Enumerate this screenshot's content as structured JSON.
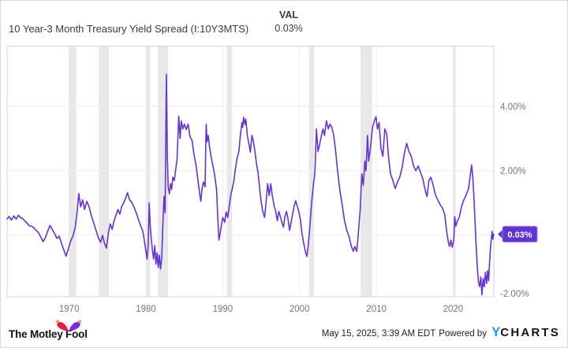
{
  "header": {
    "title": "10 Year-3 Month Treasury Yield Spread (I:10Y3MTS)",
    "val_label": "VAL",
    "val_value": "0.03%"
  },
  "badge": {
    "label": "0.03%"
  },
  "footer": {
    "brand": "The Motley Fool",
    "timestamp": "May 15, 2025, 3:39 AM EDT",
    "powered_by": "Powered by",
    "ycharts_y": "Y",
    "ycharts_rest": "CHARTS"
  },
  "colors": {
    "line": "#6234d6",
    "badge_fill": "#6234d6",
    "badge_stroke": "#9d7bea",
    "badge_text": "#ffffff",
    "recession_band": "#e8e8e8",
    "gridline": "#ececec",
    "plot_border": "#d4d4d4",
    "tick_text": "#757575",
    "fool_red": "#e61a4b",
    "fool_purple": "#7a2ad8",
    "fool_orange": "#f7a31b"
  },
  "chart_data": {
    "type": "line",
    "title": "10 Year-3 Month Treasury Yield Spread (I:10Y3MTS)",
    "series_name": "10 Year-3 Month Treasury Yield Spread",
    "current_value_pct": 0.03,
    "x_unit": "year",
    "x_range": [
      1961.92,
      2025.3
    ],
    "y_unit": "percent",
    "ylim": [
      -1.91,
      5.87
    ],
    "grid": true,
    "x_ticks": [
      1970,
      1980,
      1990,
      2000,
      2010,
      2020
    ],
    "y_ticks": [
      {
        "value": 4,
        "label": "4.00%"
      },
      {
        "value": 2,
        "label": "2.00%"
      },
      {
        "value": -2,
        "label": "-2.00%"
      }
    ],
    "y_gridlines": [
      4,
      2,
      0
    ],
    "recession_bands": [
      [
        1969.92,
        1970.92
      ],
      [
        1973.87,
        1975.17
      ],
      [
        1980.04,
        1980.54
      ],
      [
        1981.54,
        1982.88
      ],
      [
        1990.54,
        1991.21
      ],
      [
        2001.21,
        2001.88
      ],
      [
        2007.95,
        2009.45
      ],
      [
        2020.05,
        2020.33
      ]
    ],
    "points": [
      [
        1961.92,
        0.5
      ],
      [
        1962.2,
        0.58
      ],
      [
        1962.5,
        0.47
      ],
      [
        1962.8,
        0.6
      ],
      [
        1963.1,
        0.5
      ],
      [
        1963.4,
        0.62
      ],
      [
        1963.7,
        0.54
      ],
      [
        1964.0,
        0.5
      ],
      [
        1964.4,
        0.4
      ],
      [
        1964.8,
        0.3
      ],
      [
        1965.2,
        0.27
      ],
      [
        1965.6,
        0.18
      ],
      [
        1966.0,
        0.08
      ],
      [
        1966.3,
        -0.05
      ],
      [
        1966.6,
        -0.2
      ],
      [
        1966.9,
        -0.08
      ],
      [
        1967.2,
        0.12
      ],
      [
        1967.5,
        0.3
      ],
      [
        1967.8,
        0.18
      ],
      [
        1968.1,
        0.05
      ],
      [
        1968.4,
        -0.1
      ],
      [
        1968.7,
        -0.03
      ],
      [
        1969.0,
        -0.25
      ],
      [
        1969.3,
        -0.45
      ],
      [
        1969.6,
        -0.65
      ],
      [
        1969.9,
        -0.42
      ],
      [
        1970.2,
        -0.18
      ],
      [
        1970.5,
        -0.02
      ],
      [
        1970.8,
        0.25
      ],
      [
        1971.05,
        0.75
      ],
      [
        1971.25,
        1.3
      ],
      [
        1971.5,
        0.88
      ],
      [
        1971.75,
        1.1
      ],
      [
        1972.0,
        0.8
      ],
      [
        1972.3,
        1.05
      ],
      [
        1972.6,
        0.88
      ],
      [
        1972.9,
        0.6
      ],
      [
        1973.2,
        0.38
      ],
      [
        1973.5,
        0.15
      ],
      [
        1973.8,
        -0.08
      ],
      [
        1974.1,
        -0.22
      ],
      [
        1974.35,
        0.0
      ],
      [
        1974.6,
        -0.25
      ],
      [
        1974.85,
        -0.4
      ],
      [
        1975.1,
        0.05
      ],
      [
        1975.35,
        0.35
      ],
      [
        1975.6,
        0.18
      ],
      [
        1975.85,
        0.45
      ],
      [
        1976.1,
        0.62
      ],
      [
        1976.35,
        0.8
      ],
      [
        1976.6,
        0.65
      ],
      [
        1976.85,
        0.9
      ],
      [
        1977.1,
        1.0
      ],
      [
        1977.35,
        1.15
      ],
      [
        1977.6,
        1.32
      ],
      [
        1977.85,
        1.1
      ],
      [
        1978.1,
        1.04
      ],
      [
        1978.4,
        0.9
      ],
      [
        1978.7,
        0.72
      ],
      [
        1979.0,
        0.5
      ],
      [
        1979.3,
        0.3
      ],
      [
        1979.6,
        0.12
      ],
      [
        1979.85,
        -0.25
      ],
      [
        1980.0,
        -0.5
      ],
      [
        1980.15,
        -0.74
      ],
      [
        1980.3,
        -0.28
      ],
      [
        1980.42,
        1.0
      ],
      [
        1980.55,
        0.3
      ],
      [
        1980.7,
        -0.12
      ],
      [
        1980.85,
        -0.48
      ],
      [
        1981.0,
        -0.74
      ],
      [
        1981.15,
        -0.32
      ],
      [
        1981.3,
        -0.9
      ],
      [
        1981.45,
        -0.55
      ],
      [
        1981.6,
        -1.0
      ],
      [
        1981.75,
        -0.62
      ],
      [
        1981.9,
        -1.05
      ],
      [
        1982.05,
        -0.7
      ],
      [
        1982.2,
        0.3
      ],
      [
        1982.35,
        1.2
      ],
      [
        1982.5,
        0.7
      ],
      [
        1982.66,
        5.0
      ],
      [
        1982.78,
        2.5
      ],
      [
        1982.9,
        1.5
      ],
      [
        1983.05,
        1.28
      ],
      [
        1983.2,
        1.6
      ],
      [
        1983.35,
        1.42
      ],
      [
        1983.5,
        1.8
      ],
      [
        1983.7,
        1.7
      ],
      [
        1983.9,
        2.1
      ],
      [
        1984.05,
        2.35
      ],
      [
        1984.27,
        3.7
      ],
      [
        1984.45,
        3.0
      ],
      [
        1984.6,
        3.55
      ],
      [
        1984.8,
        3.3
      ],
      [
        1985.0,
        3.45
      ],
      [
        1985.25,
        3.28
      ],
      [
        1985.5,
        3.45
      ],
      [
        1985.75,
        3.05
      ],
      [
        1986.0,
        2.95
      ],
      [
        1986.25,
        2.5
      ],
      [
        1986.5,
        2.2
      ],
      [
        1986.75,
        1.75
      ],
      [
        1987.0,
        1.28
      ],
      [
        1987.15,
        1.05
      ],
      [
        1987.3,
        1.45
      ],
      [
        1987.5,
        1.65
      ],
      [
        1987.7,
        1.5
      ],
      [
        1987.78,
        2.6
      ],
      [
        1987.85,
        3.45
      ],
      [
        1987.95,
        2.9
      ],
      [
        1988.1,
        3.1
      ],
      [
        1988.3,
        2.7
      ],
      [
        1988.6,
        2.3
      ],
      [
        1988.9,
        1.95
      ],
      [
        1989.2,
        1.4
      ],
      [
        1989.35,
        0.6
      ],
      [
        1989.5,
        -0.15
      ],
      [
        1989.7,
        0.1
      ],
      [
        1989.85,
        0.35
      ],
      [
        1990.0,
        0.55
      ],
      [
        1990.25,
        0.4
      ],
      [
        1990.45,
        0.72
      ],
      [
        1990.65,
        0.55
      ],
      [
        1990.85,
        0.9
      ],
      [
        1991.05,
        1.25
      ],
      [
        1991.25,
        1.45
      ],
      [
        1991.45,
        1.7
      ],
      [
        1991.65,
        2.05
      ],
      [
        1991.85,
        2.38
      ],
      [
        1992.1,
        2.6
      ],
      [
        1992.3,
        3.1
      ],
      [
        1992.5,
        3.5
      ],
      [
        1992.6,
        3.35
      ],
      [
        1992.72,
        3.66
      ],
      [
        1992.9,
        3.44
      ],
      [
        1993.0,
        3.6
      ],
      [
        1993.2,
        3.1
      ],
      [
        1993.4,
        2.85
      ],
      [
        1993.6,
        2.58
      ],
      [
        1993.8,
        3.1
      ],
      [
        1994.0,
        2.9
      ],
      [
        1994.2,
        2.6
      ],
      [
        1994.4,
        2.2
      ],
      [
        1994.6,
        1.95
      ],
      [
        1994.8,
        1.45
      ],
      [
        1995.0,
        1.05
      ],
      [
        1995.2,
        0.74
      ],
      [
        1995.45,
        0.55
      ],
      [
        1995.65,
        1.05
      ],
      [
        1995.85,
        1.6
      ],
      [
        1996.05,
        1.23
      ],
      [
        1996.25,
        1.6
      ],
      [
        1996.45,
        1.23
      ],
      [
        1996.7,
        0.9
      ],
      [
        1996.9,
        0.74
      ],
      [
        1997.1,
        0.45
      ],
      [
        1997.3,
        0.74
      ],
      [
        1997.5,
        0.58
      ],
      [
        1997.7,
        0.4
      ],
      [
        1997.9,
        0.25
      ],
      [
        1998.1,
        0.58
      ],
      [
        1998.3,
        0.74
      ],
      [
        1998.5,
        0.5
      ],
      [
        1998.7,
        0.15
      ],
      [
        1998.9,
        0.4
      ],
      [
        1999.1,
        0.65
      ],
      [
        1999.3,
        0.9
      ],
      [
        1999.5,
        1.07
      ],
      [
        1999.7,
        0.9
      ],
      [
        1999.9,
        0.74
      ],
      [
        2000.1,
        0.5
      ],
      [
        2000.3,
        0.1
      ],
      [
        2000.5,
        -0.2
      ],
      [
        2000.75,
        -0.5
      ],
      [
        2000.95,
        -0.66
      ],
      [
        2001.1,
        -0.4
      ],
      [
        2001.3,
        0.15
      ],
      [
        2001.55,
        0.95
      ],
      [
        2001.8,
        1.55
      ],
      [
        2002.0,
        1.95
      ],
      [
        2002.2,
        3.3
      ],
      [
        2002.4,
        2.6
      ],
      [
        2002.6,
        2.8
      ],
      [
        2002.85,
        3.1
      ],
      [
        2003.05,
        3.3
      ],
      [
        2003.25,
        3.1
      ],
      [
        2003.5,
        3.55
      ],
      [
        2003.75,
        3.3
      ],
      [
        2003.95,
        3.45
      ],
      [
        2004.2,
        3.35
      ],
      [
        2004.45,
        3.1
      ],
      [
        2004.7,
        2.6
      ],
      [
        2004.95,
        2.0
      ],
      [
        2005.25,
        1.4
      ],
      [
        2005.55,
        0.95
      ],
      [
        2005.85,
        0.45
      ],
      [
        2006.15,
        0.15
      ],
      [
        2006.45,
        -0.05
      ],
      [
        2006.75,
        -0.35
      ],
      [
        2007.0,
        -0.5
      ],
      [
        2007.2,
        -0.35
      ],
      [
        2007.45,
        -0.5
      ],
      [
        2007.65,
        0.05
      ],
      [
        2007.9,
        0.8
      ],
      [
        2008.1,
        1.9
      ],
      [
        2008.3,
        1.55
      ],
      [
        2008.5,
        2.3
      ],
      [
        2008.65,
        2.0
      ],
      [
        2008.85,
        3.1
      ],
      [
        2009.0,
        2.3
      ],
      [
        2009.25,
        2.75
      ],
      [
        2009.5,
        3.35
      ],
      [
        2009.75,
        3.55
      ],
      [
        2009.95,
        3.68
      ],
      [
        2010.15,
        3.3
      ],
      [
        2010.35,
        3.5
      ],
      [
        2010.6,
        2.7
      ],
      [
        2010.85,
        2.45
      ],
      [
        2011.1,
        3.3
      ],
      [
        2011.35,
        3.15
      ],
      [
        2011.6,
        2.4
      ],
      [
        2011.85,
        1.9
      ],
      [
        2012.15,
        1.7
      ],
      [
        2012.45,
        1.45
      ],
      [
        2012.75,
        1.65
      ],
      [
        2013.05,
        1.8
      ],
      [
        2013.35,
        2.1
      ],
      [
        2013.65,
        2.55
      ],
      [
        2013.95,
        2.85
      ],
      [
        2014.25,
        2.6
      ],
      [
        2014.55,
        2.45
      ],
      [
        2014.85,
        2.15
      ],
      [
        2015.15,
        2.0
      ],
      [
        2015.45,
        2.15
      ],
      [
        2015.75,
        1.95
      ],
      [
        2016.05,
        1.75
      ],
      [
        2016.35,
        1.4
      ],
      [
        2016.6,
        1.2
      ],
      [
        2016.85,
        1.7
      ],
      [
        2017.1,
        1.8
      ],
      [
        2017.4,
        1.55
      ],
      [
        2017.7,
        1.25
      ],
      [
        2018.0,
        1.1
      ],
      [
        2018.3,
        0.95
      ],
      [
        2018.6,
        0.85
      ],
      [
        2018.9,
        0.65
      ],
      [
        2019.2,
        0.05
      ],
      [
        2019.4,
        -0.25
      ],
      [
        2019.55,
        -0.35
      ],
      [
        2019.7,
        -0.15
      ],
      [
        2019.9,
        -0.37
      ],
      [
        2020.08,
        -0.15
      ],
      [
        2020.2,
        0.58
      ],
      [
        2020.35,
        0.28
      ],
      [
        2020.55,
        0.45
      ],
      [
        2020.8,
        0.55
      ],
      [
        2021.1,
        0.9
      ],
      [
        2021.4,
        1.1
      ],
      [
        2021.7,
        1.25
      ],
      [
        2022.0,
        1.45
      ],
      [
        2022.2,
        1.8
      ],
      [
        2022.4,
        2.18
      ],
      [
        2022.55,
        1.85
      ],
      [
        2022.7,
        1.2
      ],
      [
        2022.85,
        0.45
      ],
      [
        2023.0,
        -0.35
      ],
      [
        2023.15,
        -1.0
      ],
      [
        2023.3,
        -1.45
      ],
      [
        2023.45,
        -1.6
      ],
      [
        2023.6,
        -1.3
      ],
      [
        2023.75,
        -1.85
      ],
      [
        2023.9,
        -1.35
      ],
      [
        2024.05,
        -1.6
      ],
      [
        2024.2,
        -1.15
      ],
      [
        2024.35,
        -1.5
      ],
      [
        2024.5,
        -1.1
      ],
      [
        2024.62,
        -1.42
      ],
      [
        2024.75,
        -0.85
      ],
      [
        2024.88,
        -0.35
      ],
      [
        2025.0,
        -0.05
      ],
      [
        2025.08,
        0.12
      ],
      [
        2025.17,
        -0.12
      ],
      [
        2025.28,
        0.03
      ]
    ]
  }
}
